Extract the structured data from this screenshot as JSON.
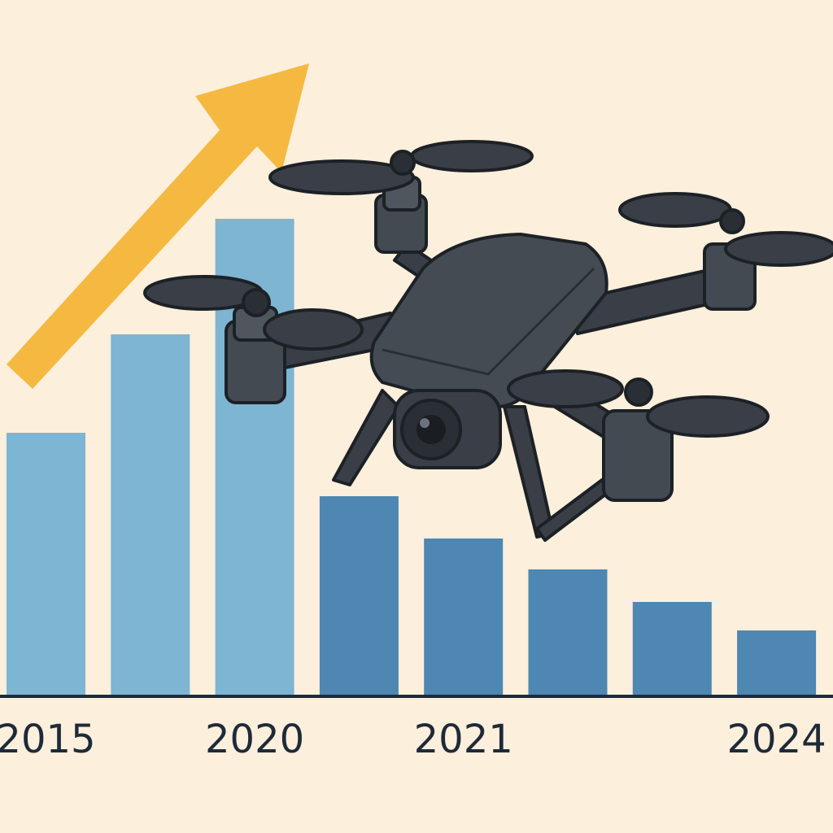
{
  "chart_data": {
    "type": "bar",
    "categories": [
      "2015",
      null,
      "2020",
      null,
      "2021",
      null,
      null,
      "2024"
    ],
    "values": [
      323,
      444,
      586,
      245,
      193,
      155,
      115,
      80
    ],
    "colors": [
      "#7db5d3",
      "#7db5d3",
      "#7db5d3",
      "#4d87b2",
      "#4d87b2",
      "#4d87b2",
      "#4d87b2",
      "#4d87b2"
    ]
  }
}
